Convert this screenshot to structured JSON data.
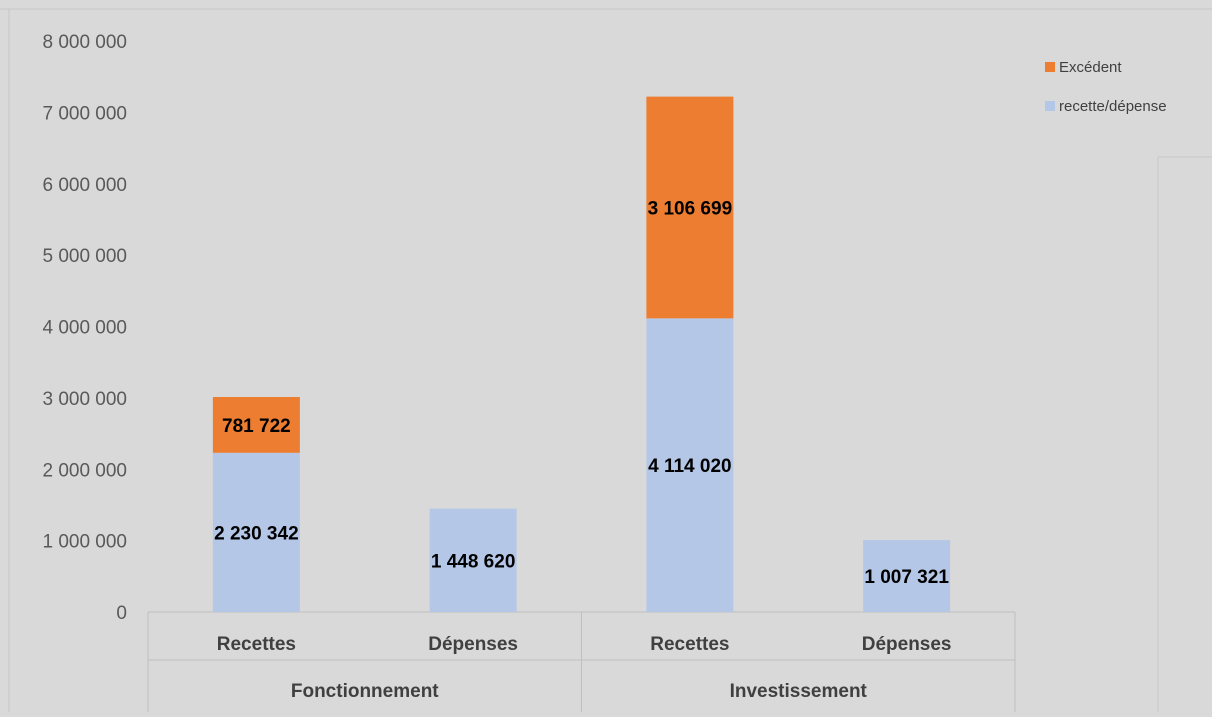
{
  "chart_data": {
    "type": "bar",
    "stacked": true,
    "groups": [
      "Fonctionnement",
      "Investissement"
    ],
    "categories": [
      "Recettes",
      "Dépenses",
      "Recettes",
      "Dépenses"
    ],
    "category_groups": [
      "Fonctionnement",
      "Fonctionnement",
      "Investissement",
      "Investissement"
    ],
    "series": [
      {
        "name": "recette/dépense",
        "color": "#b4c7e7",
        "values": [
          2230342,
          1448620,
          4114020,
          1007321
        ],
        "labels": [
          "2 230 342",
          "1 448 620",
          "4 114 020",
          "1 007 321"
        ]
      },
      {
        "name": "Excédent",
        "color": "#ed7d31",
        "values": [
          781722,
          0,
          3106699,
          0
        ],
        "labels": [
          "781 722",
          "",
          "3 106 699",
          ""
        ]
      }
    ],
    "y_ticks": [
      "0",
      "1 000 000",
      "2 000 000",
      "3 000 000",
      "4 000 000",
      "5 000 000",
      "6 000 000",
      "7 000 000",
      "8 000 000"
    ],
    "ylim": [
      0,
      8000000
    ],
    "grid": false,
    "legend_position": "top-right",
    "title": "",
    "xlabel": "",
    "ylabel": ""
  }
}
